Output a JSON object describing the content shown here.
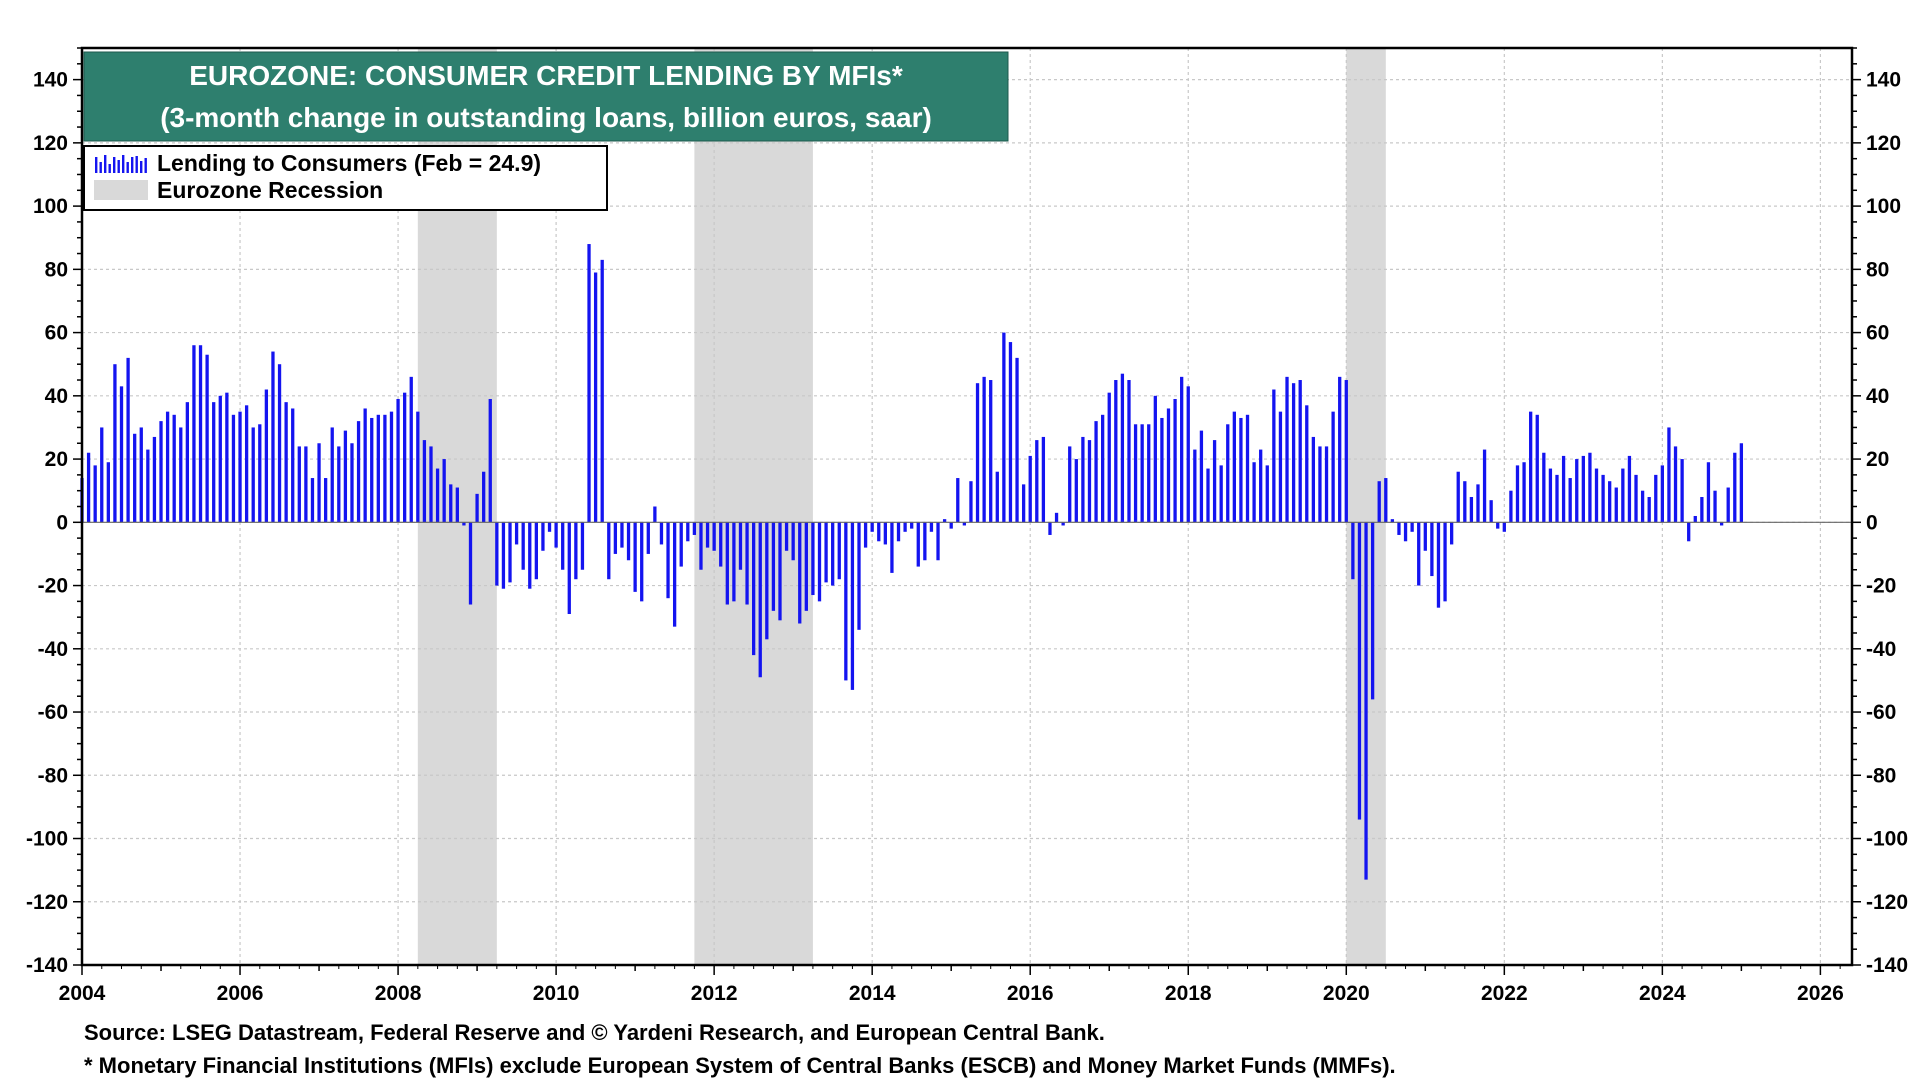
{
  "chart_data": {
    "type": "bar",
    "title": "EUROZONE: CONSUMER CREDIT LENDING BY MFIs*",
    "subtitle": "(3-month change in outstanding loans, billion euros, saar)",
    "xlabel": "",
    "ylabel": "",
    "xlim": [
      2004,
      2026.4
    ],
    "ylim": [
      -140,
      150
    ],
    "x_ticks": [
      "2004",
      "2006",
      "2008",
      "2010",
      "2012",
      "2014",
      "2016",
      "2018",
      "2020",
      "2022",
      "2024",
      "2026"
    ],
    "y_ticks": [
      140,
      120,
      100,
      80,
      60,
      40,
      20,
      0,
      -20,
      -40,
      -60,
      -80,
      -100,
      -120,
      -140
    ],
    "grid": true,
    "legend_position": "top-left",
    "legend": {
      "series_label": "Lending to Consumers (Feb = 24.9)",
      "recession_label": "Eurozone Recession"
    },
    "recessions": [
      {
        "start": 2008.25,
        "end": 2009.25
      },
      {
        "start": 2011.75,
        "end": 2013.25
      },
      {
        "start": 2020.0,
        "end": 2020.5
      }
    ],
    "series": [
      {
        "name": "Lending to Consumers (Feb = 24.9)",
        "start": 2004.0,
        "frequency": "monthly",
        "values": [
          14,
          22,
          18,
          30,
          19,
          50,
          43,
          52,
          28,
          30,
          23,
          27,
          32,
          35,
          34,
          30,
          38,
          56,
          56,
          53,
          38,
          40,
          41,
          34,
          35,
          37,
          30,
          31,
          42,
          54,
          50,
          38,
          36,
          24,
          24,
          14,
          25,
          14,
          30,
          24,
          29,
          25,
          32,
          36,
          33,
          34,
          34,
          35,
          39,
          41,
          46,
          35,
          26,
          24,
          17,
          20,
          12,
          11,
          -1,
          -26,
          9,
          16,
          39,
          -20,
          -21,
          -19,
          -7,
          -15,
          -21,
          -18,
          -9,
          -3,
          -8,
          -15,
          -29,
          -18,
          -15,
          88,
          79,
          83,
          -18,
          -10,
          -8,
          -12,
          -22,
          -25,
          -10,
          5,
          -7,
          -24,
          -33,
          -14,
          -6,
          -4,
          -15,
          -8,
          -9,
          -14,
          -26,
          -25,
          -15,
          -26,
          -42,
          -49,
          -37,
          -28,
          -31,
          -9,
          -12,
          -32,
          -28,
          -23,
          -25,
          -19,
          -20,
          -18,
          -50,
          -53,
          -34,
          -8,
          -3,
          -6,
          -7,
          -16,
          -6,
          -3,
          -2,
          -14,
          -12,
          -3,
          -12,
          1,
          -2,
          14,
          -1,
          13,
          44,
          46,
          45,
          16,
          60,
          57,
          52,
          12,
          21,
          26,
          27,
          -4,
          3,
          -1,
          24,
          20,
          27,
          26,
          32,
          34,
          41,
          45,
          47,
          45,
          31,
          31,
          31,
          40,
          33,
          36,
          39,
          46,
          43,
          23,
          29,
          17,
          26,
          18,
          31,
          35,
          33,
          34,
          19,
          23,
          18,
          42,
          35,
          46,
          44,
          45,
          37,
          27,
          24,
          24,
          35,
          46,
          45,
          -18,
          -94,
          -113,
          -56,
          13,
          14,
          1,
          -4,
          -6,
          -3,
          -20,
          -9,
          -17,
          -27,
          -25,
          -7,
          16,
          13,
          8,
          12,
          23,
          7,
          -2,
          -3,
          10,
          18,
          19,
          35,
          34,
          22,
          17,
          15,
          21,
          14,
          20,
          21,
          22,
          17,
          15,
          13,
          11,
          17,
          21,
          15,
          10,
          8,
          15,
          18,
          30,
          24,
          20,
          -6,
          2,
          8,
          19,
          10,
          -1,
          11,
          22,
          25
        ]
      }
    ],
    "colors": {
      "bar": "#1414f0",
      "recession": "#d9d9d9",
      "title_bg": "#2e7f6e",
      "grid": "#c8c8c8"
    }
  },
  "footnotes": {
    "source": "Source: LSEG Datastream, Federal Reserve and © Yardeni Research, and European Central Bank.",
    "note": "* Monetary Financial Institutions (MFIs) exclude European System of Central Banks (ESCB) and Money Market Funds (MMFs)."
  }
}
